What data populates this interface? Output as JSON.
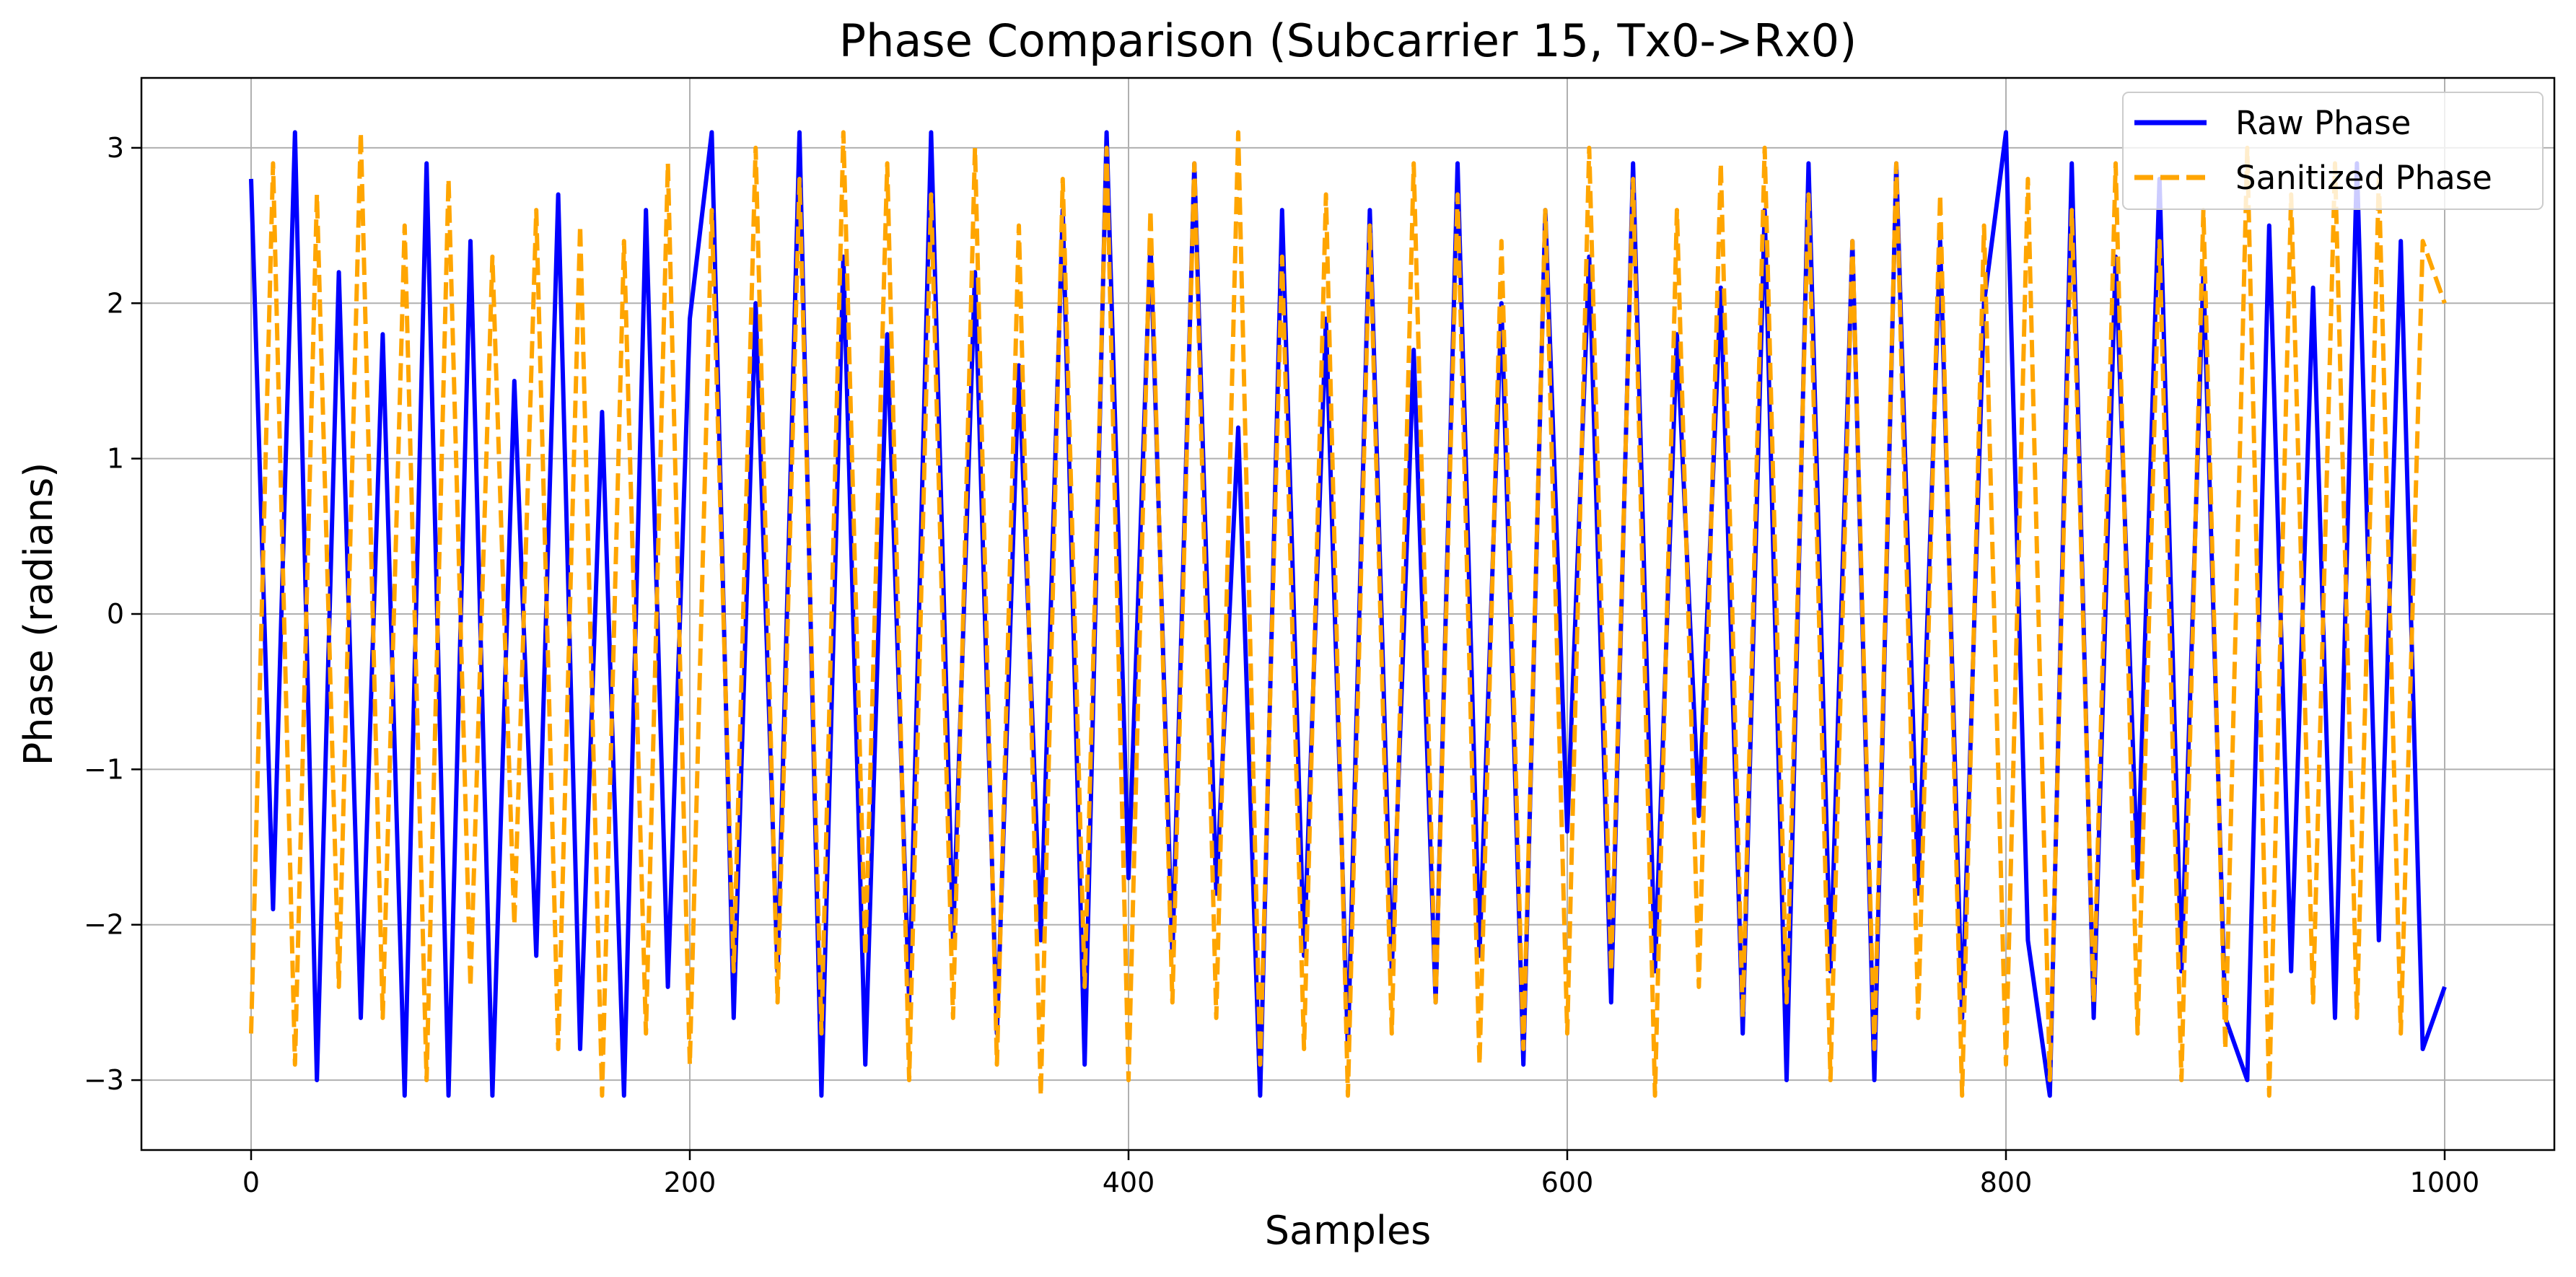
{
  "chart_data": {
    "type": "line",
    "title": "Phase Comparison (Subcarrier 15, Tx0->Rx0)",
    "xlabel": "Samples",
    "ylabel": "Phase (radians)",
    "xlim": [
      -50,
      1050
    ],
    "ylim": [
      -3.45,
      3.45
    ],
    "xticks": [
      0,
      200,
      400,
      600,
      800,
      1000
    ],
    "yticks": [
      -3,
      -2,
      -1,
      0,
      1,
      2,
      3
    ],
    "xtick_labels": [
      "0",
      "200",
      "400",
      "600",
      "800",
      "1000"
    ],
    "ytick_labels": [
      "−3",
      "−2",
      "−1",
      "0",
      "1",
      "2",
      "3"
    ],
    "grid": true,
    "legend_position": "top-right",
    "series": [
      {
        "name": "Raw Phase",
        "color": "#0000ff",
        "style": "solid",
        "x": [
          0,
          10,
          20,
          30,
          40,
          50,
          60,
          70,
          80,
          90,
          100,
          110,
          120,
          130,
          140,
          150,
          160,
          170,
          180,
          190,
          200,
          210,
          220,
          230,
          240,
          250,
          260,
          270,
          280,
          290,
          300,
          310,
          320,
          330,
          340,
          350,
          360,
          370,
          380,
          390,
          400,
          410,
          420,
          430,
          440,
          450,
          460,
          470,
          480,
          490,
          500,
          510,
          520,
          530,
          540,
          550,
          560,
          570,
          580,
          590,
          600,
          610,
          620,
          630,
          640,
          650,
          660,
          670,
          680,
          690,
          700,
          710,
          720,
          730,
          740,
          750,
          760,
          770,
          780,
          790,
          800,
          810,
          820,
          830,
          840,
          850,
          860,
          870,
          880,
          890,
          900,
          910,
          920,
          930,
          940,
          950,
          960,
          970,
          980,
          990,
          1000
        ],
        "y": [
          2.8,
          -1.9,
          3.1,
          -3.0,
          2.2,
          -2.6,
          1.8,
          -3.1,
          2.9,
          -3.1,
          2.4,
          -3.1,
          1.5,
          -2.2,
          2.7,
          -2.8,
          1.3,
          -3.1,
          2.6,
          -2.4,
          1.9,
          3.1,
          -2.6,
          2.0,
          -2.3,
          3.1,
          -3.1,
          2.3,
          -2.9,
          1.8,
          -2.5,
          3.1,
          -2.1,
          2.2,
          -2.7,
          1.6,
          -2.1,
          2.6,
          -2.9,
          3.1,
          -1.7,
          2.4,
          -2.2,
          2.9,
          -1.8,
          1.2,
          -3.1,
          2.6,
          -2.2,
          1.9,
          -2.8,
          2.6,
          -2.3,
          1.7,
          -2.5,
          2.9,
          -2.2,
          2.0,
          -2.9,
          2.6,
          -1.4,
          2.3,
          -2.5,
          2.9,
          -2.3,
          1.8,
          -1.3,
          2.1,
          -2.7,
          2.6,
          -3.0,
          2.9,
          -2.3,
          2.4,
          -3.0,
          2.9,
          -1.8,
          2.4,
          -2.6,
          2.0,
          3.1,
          -2.1,
          -3.1,
          2.9,
          -2.6,
          2.3,
          -1.7,
          2.8,
          -2.3,
          2.2,
          -2.6,
          -3.0,
          2.5,
          -2.3,
          2.1,
          -2.6,
          2.9,
          -2.1,
          2.4,
          -2.8,
          -2.4
        ]
      },
      {
        "name": "Sanitized Phase",
        "color": "#ffa500",
        "style": "dashed",
        "x": [
          0,
          10,
          20,
          30,
          40,
          50,
          60,
          70,
          80,
          90,
          100,
          110,
          120,
          130,
          140,
          150,
          160,
          170,
          180,
          190,
          200,
          210,
          220,
          230,
          240,
          250,
          260,
          270,
          280,
          290,
          300,
          310,
          320,
          330,
          340,
          350,
          360,
          370,
          380,
          390,
          400,
          410,
          420,
          430,
          440,
          450,
          460,
          470,
          480,
          490,
          500,
          510,
          520,
          530,
          540,
          550,
          560,
          570,
          580,
          590,
          600,
          610,
          620,
          630,
          640,
          650,
          660,
          670,
          680,
          690,
          700,
          710,
          720,
          730,
          740,
          750,
          760,
          770,
          780,
          790,
          800,
          810,
          820,
          830,
          840,
          850,
          860,
          870,
          880,
          890,
          900,
          910,
          920,
          930,
          940,
          950,
          960,
          970,
          980,
          990,
          1000
        ],
        "y": [
          -2.7,
          2.9,
          -2.9,
          2.7,
          -2.4,
          3.1,
          -2.6,
          2.5,
          -3.0,
          2.8,
          -2.4,
          2.3,
          -2.0,
          2.6,
          -2.8,
          2.5,
          -3.1,
          2.4,
          -2.7,
          2.9,
          -2.9,
          2.6,
          -2.3,
          3.0,
          -2.5,
          2.8,
          -2.7,
          3.1,
          -2.2,
          2.9,
          -3.0,
          2.7,
          -2.6,
          3.0,
          -2.9,
          2.5,
          -3.1,
          2.8,
          -2.4,
          3.0,
          -3.0,
          2.6,
          -2.5,
          2.9,
          -2.6,
          3.1,
          -2.9,
          2.3,
          -2.8,
          2.7,
          -3.1,
          2.5,
          -2.7,
          2.9,
          -2.5,
          2.7,
          -2.9,
          2.4,
          -2.8,
          2.6,
          -2.7,
          3.0,
          -2.3,
          2.8,
          -3.1,
          2.6,
          -2.4,
          2.9,
          -2.6,
          3.0,
          -2.5,
          2.7,
          -3.0,
          2.4,
          -2.8,
          2.9,
          -2.6,
          2.7,
          -3.1,
          2.5,
          -2.9,
          2.8,
          -3.0,
          2.6,
          -2.5,
          2.9,
          -2.7,
          2.4,
          -3.0,
          2.6,
          -2.8,
          3.0,
          -3.1,
          2.7,
          -2.5,
          2.9,
          -2.6,
          2.8,
          -2.7,
          2.4,
          2.0
        ]
      }
    ]
  }
}
